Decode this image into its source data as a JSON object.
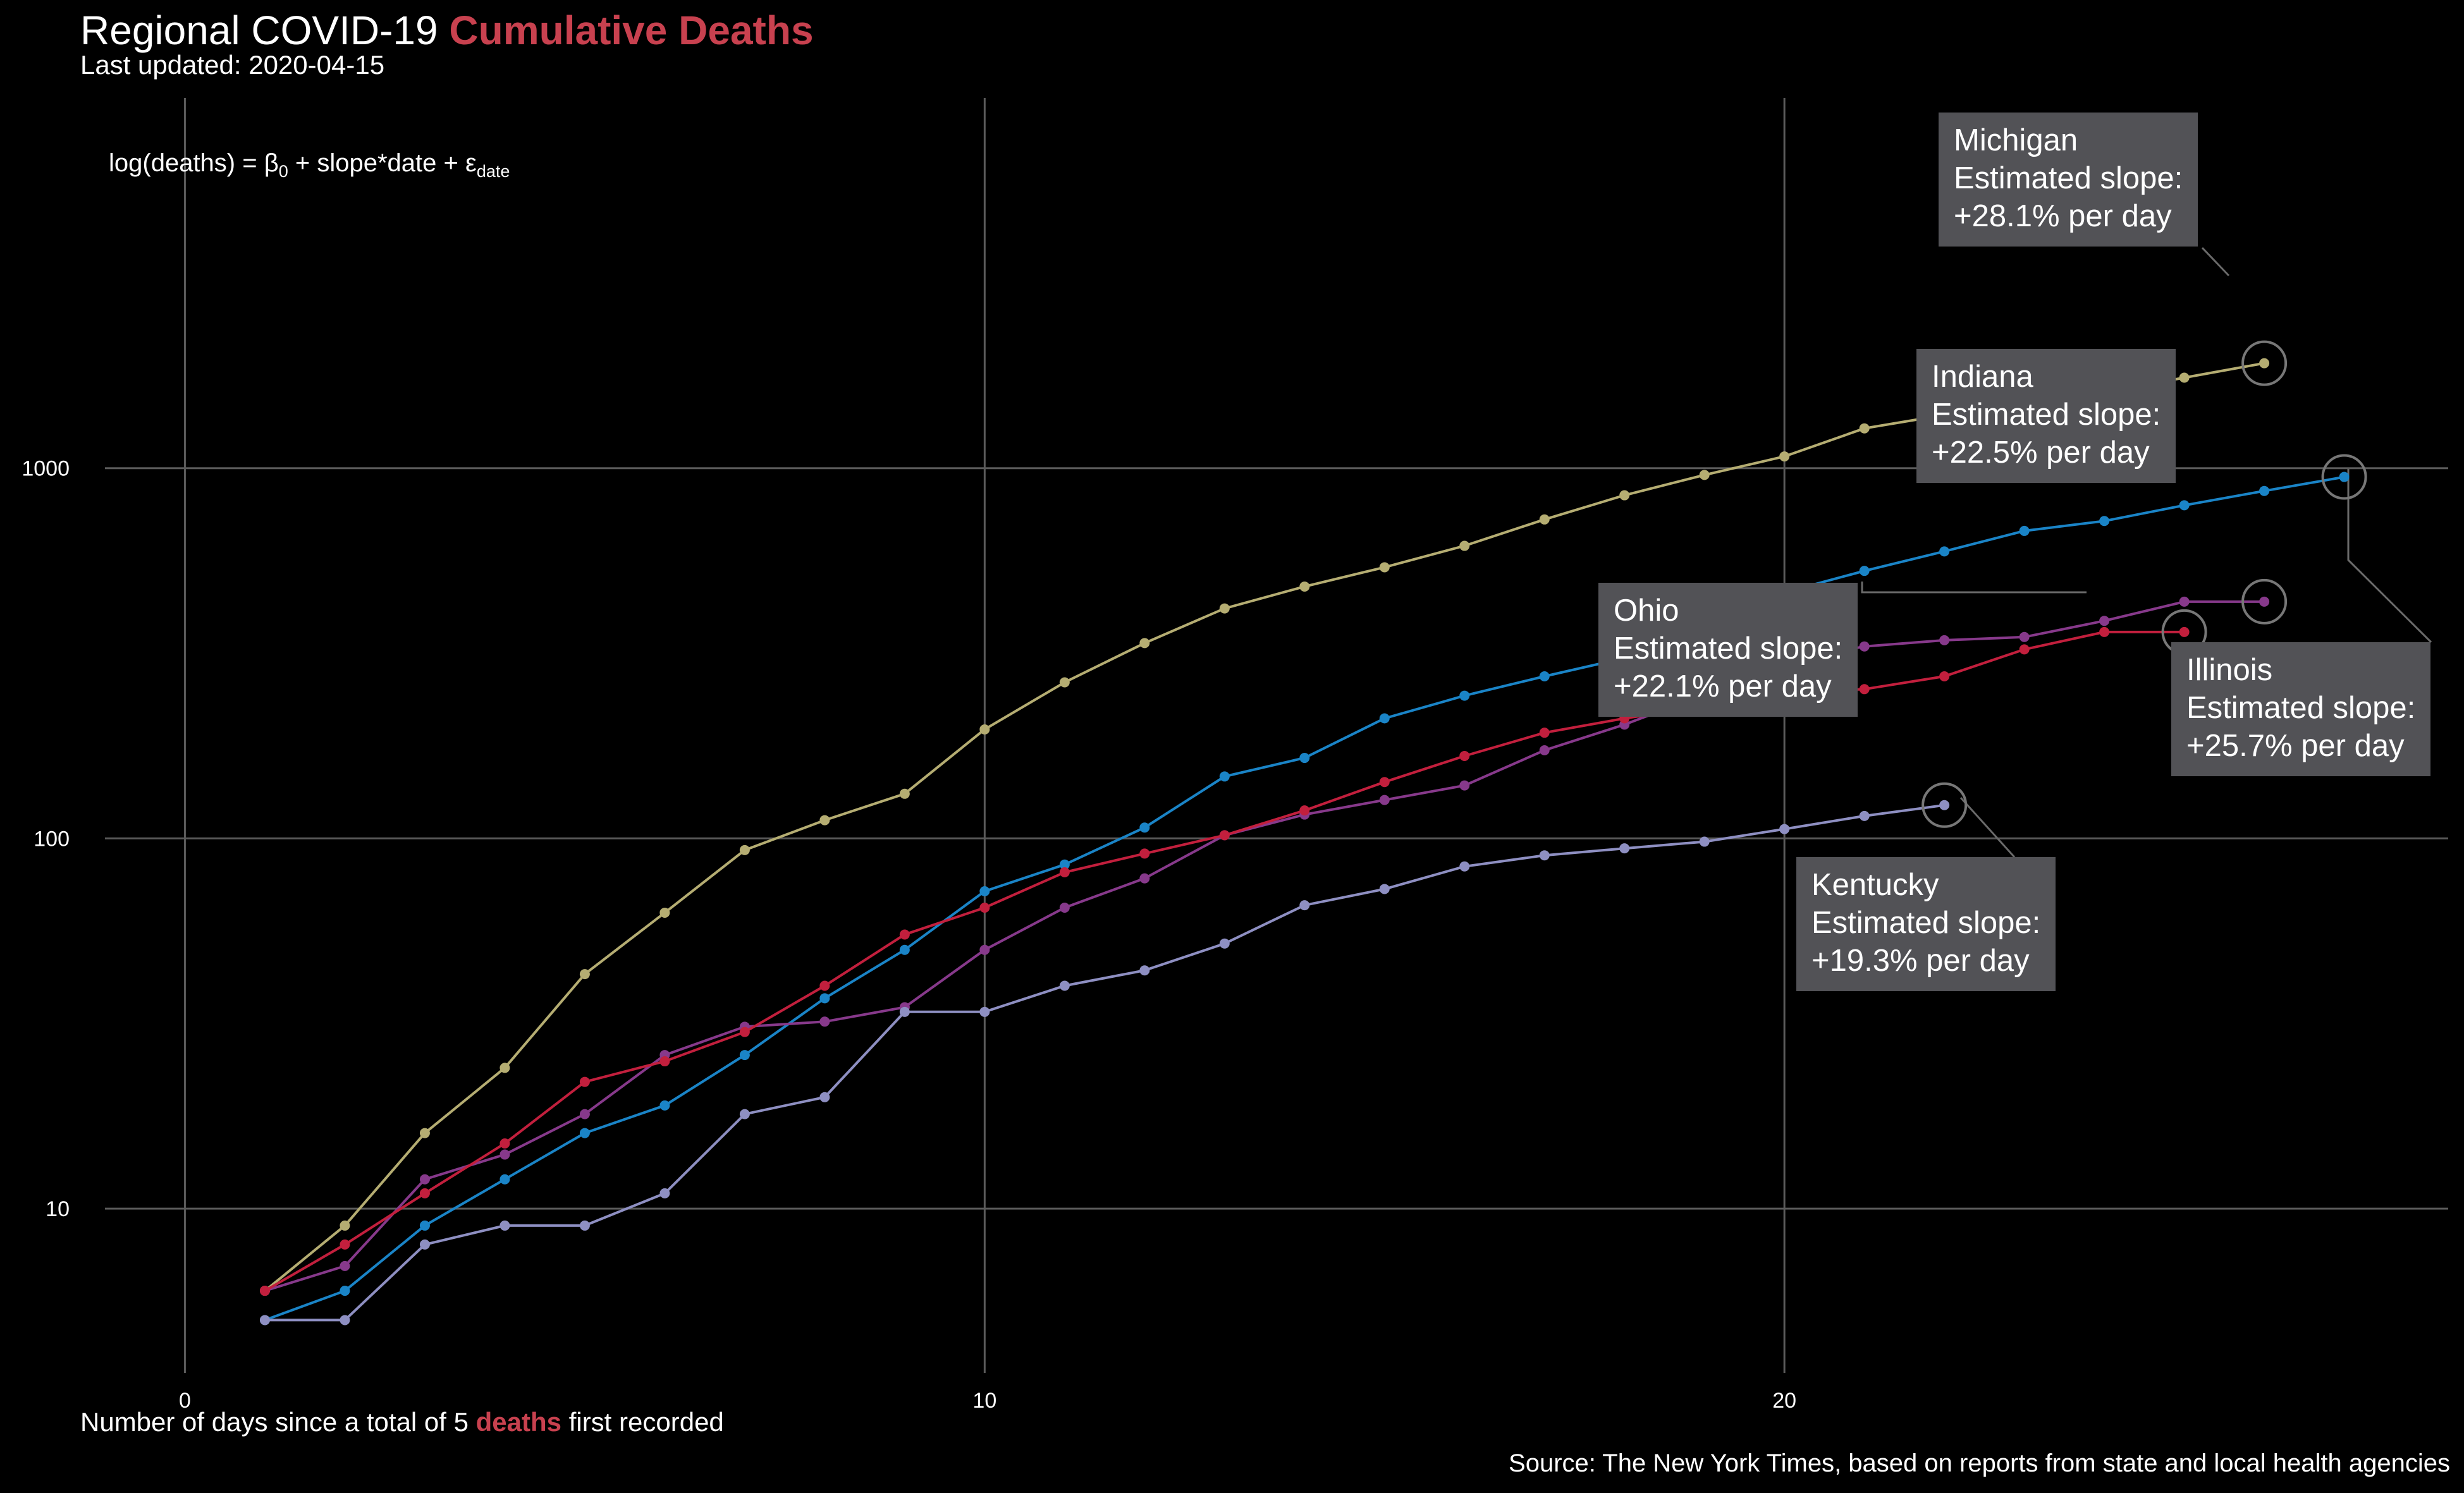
{
  "title": {
    "main": "Regional COVID-19",
    "accent": "Cumulative Deaths",
    "accent_color": "#c8414f"
  },
  "subtitle": "Last updated: 2020-04-15",
  "formula": {
    "lhs": "log(deaths) = ",
    "beta": "β",
    "beta_sub": "0",
    "middle": " + slope*date + ",
    "eps": "ε",
    "eps_sub": "date"
  },
  "x_axis": {
    "label_pre": "Number of days since a total of 5 ",
    "label_accent": "deaths",
    "label_post": " first recorded"
  },
  "source": "Source: The New York Times, based on reports from state and local health agencies",
  "chart_data": {
    "type": "line",
    "title": "Regional COVID-19 Cumulative Deaths",
    "xlabel": "Number of days since a total of 5 deaths first recorded",
    "ylabel": "",
    "y_scale": "log",
    "xlim": [
      -1,
      28.3
    ],
    "ylim": [
      3.6,
      10000
    ],
    "x_ticks": [
      0,
      10,
      20
    ],
    "y_ticks": [
      10,
      100,
      1000
    ],
    "grid": true,
    "annotation_circle_color": "#777777",
    "annotation_bg": "#525256",
    "series": [
      {
        "name": "Michigan",
        "color": "#b5ad72",
        "slope_label": "Estimated slope:",
        "slope_value": "+28.1% per day",
        "x": [
          1,
          2,
          3,
          4,
          5,
          6,
          7,
          8,
          9,
          10,
          11,
          12,
          13,
          14,
          15,
          16,
          17,
          18,
          19,
          20,
          21,
          22,
          23,
          24,
          25,
          26
        ],
        "y": [
          6,
          9,
          16,
          24,
          43,
          63,
          93,
          112,
          132,
          197,
          264,
          337,
          418,
          479,
          540,
          617,
          727,
          845,
          959,
          1076,
          1281,
          1392,
          1487,
          1602,
          1756,
          1921
        ]
      },
      {
        "name": "Illinois",
        "color": "#1a84c7",
        "slope_label": "Estimated slope:",
        "slope_value": "+25.7% per day",
        "x": [
          1,
          2,
          3,
          4,
          5,
          6,
          7,
          8,
          9,
          10,
          11,
          12,
          13,
          14,
          15,
          16,
          17,
          18,
          19,
          20,
          21,
          22,
          23,
          24,
          25,
          26,
          27
        ],
        "y": [
          5,
          6,
          9,
          12,
          16,
          19,
          26,
          37,
          50,
          72,
          85,
          107,
          147,
          165,
          211,
          243,
          274,
          307,
          380,
          462,
          528,
          596,
          677,
          720,
          794,
          868,
          947
        ]
      },
      {
        "name": "Indiana",
        "color": "#87398b",
        "slope_label": "Estimated slope:",
        "slope_value": "+22.5% per day",
        "x": [
          1,
          2,
          3,
          4,
          5,
          6,
          7,
          8,
          9,
          10,
          11,
          12,
          13,
          14,
          15,
          16,
          17,
          18,
          19,
          20,
          21,
          22,
          23,
          24,
          25,
          26
        ],
        "y": [
          6,
          7,
          12,
          14,
          18,
          26,
          31,
          32,
          35,
          50,
          65,
          78,
          102,
          116,
          127,
          139,
          173,
          203,
          245,
          300,
          330,
          343,
          350,
          387,
          436,
          436
        ]
      },
      {
        "name": "Ohio",
        "color": "#c21f3d",
        "slope_label": "Estimated slope:",
        "slope_value": "+22.1% per day",
        "x": [
          1,
          2,
          3,
          4,
          5,
          6,
          7,
          8,
          9,
          10,
          11,
          12,
          13,
          14,
          15,
          16,
          17,
          18,
          19,
          20,
          21,
          22,
          23,
          24,
          25
        ],
        "y": [
          6,
          8,
          11,
          15,
          22,
          25,
          30,
          40,
          55,
          65,
          81,
          91,
          102,
          119,
          142,
          167,
          193,
          211,
          227,
          247,
          253,
          274,
          324,
          361,
          361
        ]
      },
      {
        "name": "Kentucky",
        "color": "#8e8fc2",
        "slope_label": "Estimated slope:",
        "slope_value": "+19.3% per day",
        "x": [
          1,
          2,
          3,
          4,
          5,
          6,
          7,
          8,
          9,
          10,
          11,
          12,
          13,
          14,
          15,
          16,
          17,
          18,
          19,
          20,
          21,
          22
        ],
        "y": [
          5,
          5,
          8,
          9,
          9,
          11,
          18,
          20,
          34,
          34,
          40,
          44,
          52,
          66,
          73,
          84,
          90,
          94,
          98,
          106,
          115,
          123
        ]
      }
    ]
  }
}
